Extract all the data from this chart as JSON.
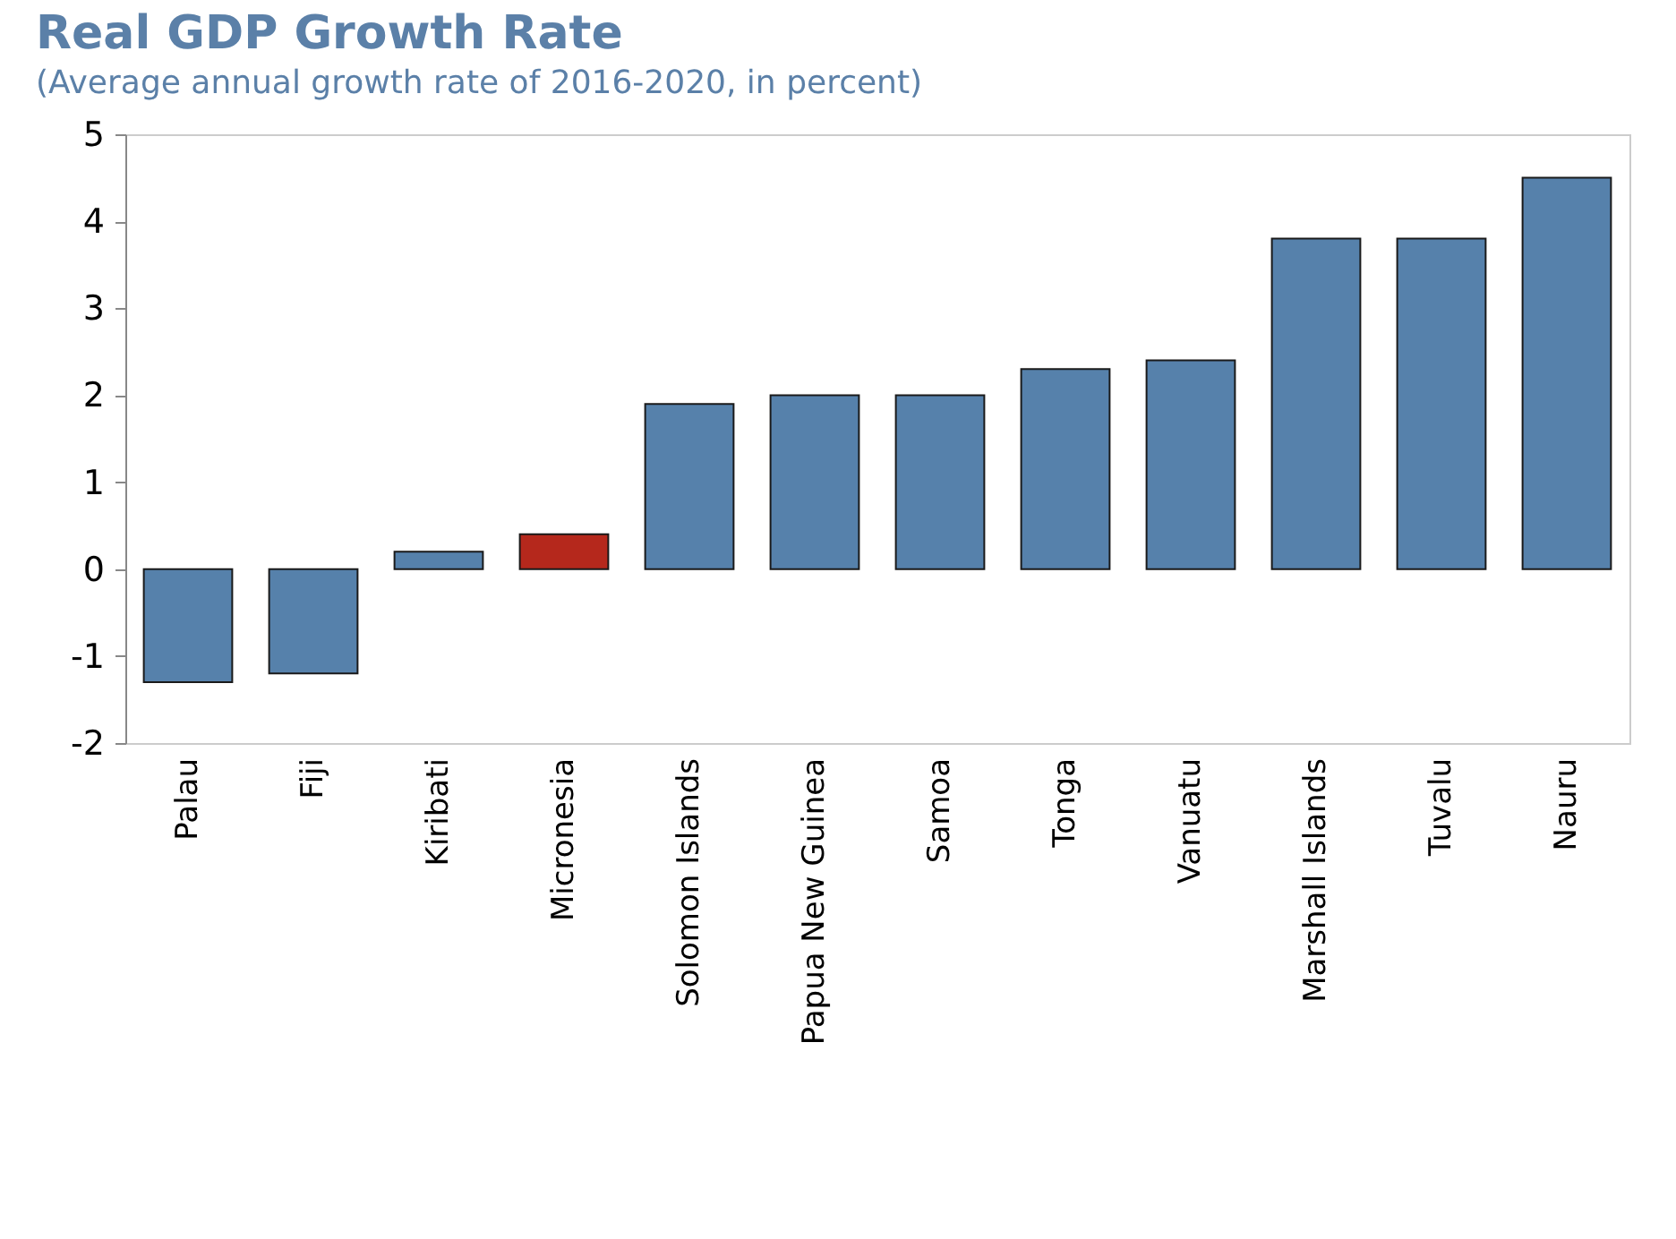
{
  "chart_data": {
    "type": "bar",
    "title": "Real GDP Growth Rate",
    "subtitle": "(Average annual growth rate of 2016-2020, in percent)",
    "categories": [
      "Palau",
      "Fiji",
      "Kiribati",
      "Micronesia",
      "Solomon Islands",
      "Papua New Guinea",
      "Samoa",
      "Tonga",
      "Vanuatu",
      "Marshall Islands",
      "Tuvalu",
      "Nauru"
    ],
    "values": [
      -1.3,
      -1.2,
      0.2,
      0.4,
      1.9,
      2.0,
      2.0,
      2.3,
      2.4,
      3.8,
      3.8,
      4.5
    ],
    "colors": [
      "#5681ab",
      "#5681ab",
      "#5681ab",
      "#b5281c",
      "#5681ab",
      "#5681ab",
      "#5681ab",
      "#5681ab",
      "#5681ab",
      "#5681ab",
      "#5681ab",
      "#5681ab"
    ],
    "ylim": [
      -2,
      5
    ],
    "yticks": [
      -2,
      -1,
      0,
      1,
      2,
      3,
      4,
      5
    ],
    "grid": false
  }
}
